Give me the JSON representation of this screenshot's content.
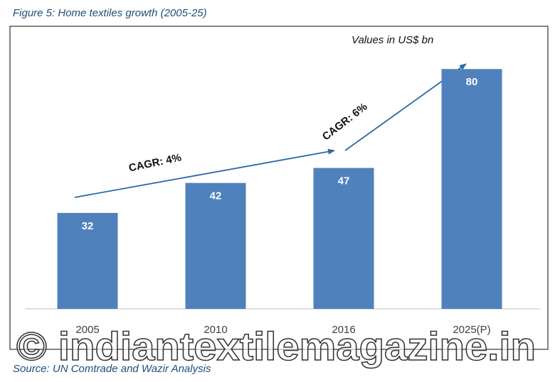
{
  "chart_data": {
    "type": "bar",
    "title": "Figure 5: Home textiles growth (2005-25)",
    "subtitle": "Values in US$ bn",
    "categories": [
      "2005",
      "2010",
      "2016",
      "2025(P)"
    ],
    "values": [
      32,
      42,
      47,
      80
    ],
    "color": "#4f81bd",
    "ylim": [
      0,
      90
    ],
    "annotations": [
      "CAGR: 4%",
      "CAGR: 6%"
    ],
    "source": "Source: UN Comtrade and Wazir Analysis",
    "watermark": "© indiantextilemagazine.in"
  }
}
